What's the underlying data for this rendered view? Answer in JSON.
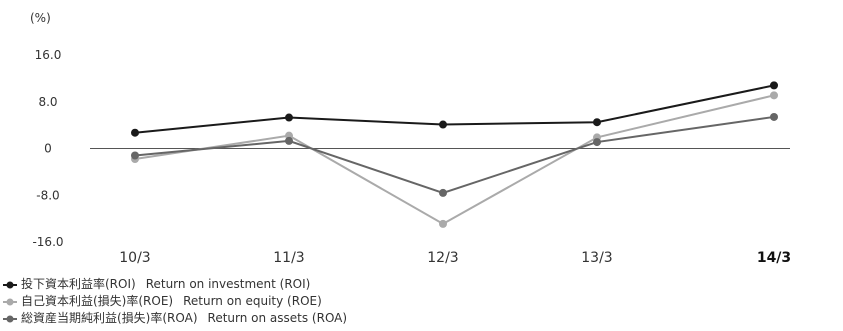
{
  "chart_data": {
    "type": "line",
    "unit_label": "(%)",
    "categories": [
      "10/3",
      "11/3",
      "12/3",
      "13/3",
      "14/3"
    ],
    "highlight_category": "14/3",
    "yticks": [
      "16.0",
      "8.0",
      "0",
      "-8.0",
      "-16.0"
    ],
    "ylim": [
      -16,
      16
    ],
    "series": [
      {
        "name": "投下資本利益率(ROI)",
        "name_en": "Return on investment (ROI)",
        "color": "#1a1a1a",
        "values": [
          2.7,
          5.3,
          4.1,
          4.5,
          10.8
        ]
      },
      {
        "name": "自己資本利益(損失)率(ROE)",
        "name_en": "Return on equity (ROE)",
        "color": "#aaaaaa",
        "values": [
          -1.8,
          2.2,
          -12.9,
          1.9,
          9.1
        ]
      },
      {
        "name": "総資産当期純利益(損失)率(ROA)",
        "name_en": "Return on assets (ROA)",
        "color": "#666666",
        "values": [
          -1.2,
          1.3,
          -7.6,
          1.1,
          5.4
        ]
      }
    ]
  }
}
